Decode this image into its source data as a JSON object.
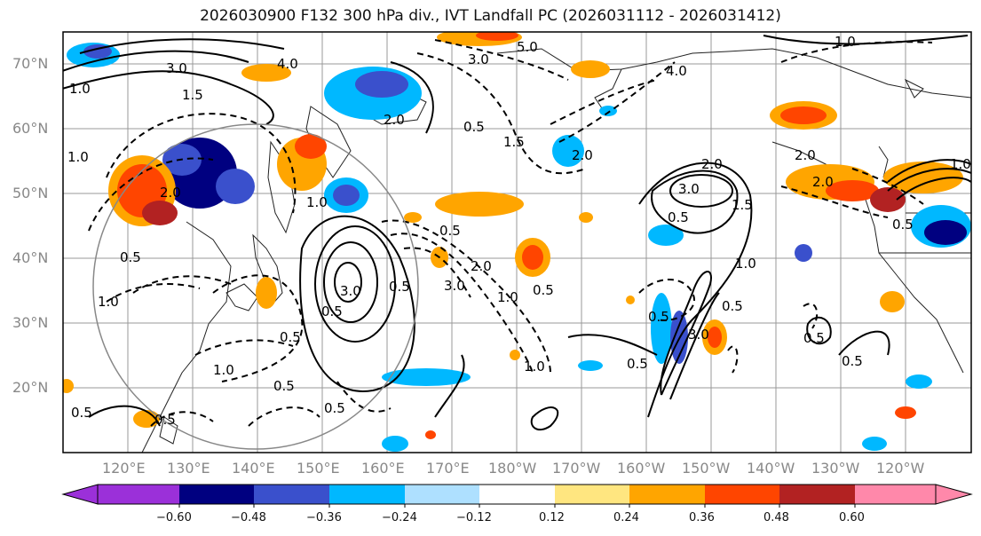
{
  "title": "2026030900 F132 300 hPa div., IVT Landfall PC (2026031112 - 2026031412)",
  "lat_labels": [
    "70°N",
    "60°N",
    "50°N",
    "40°N",
    "30°N",
    "20°N"
  ],
  "lon_labels": [
    "120°E",
    "130°E",
    "140°E",
    "150°E",
    "160°E",
    "170°E",
    "180°W",
    "170°W",
    "160°W",
    "150°W",
    "140°W",
    "130°W",
    "120°W"
  ],
  "colorbar": {
    "ticks": [
      "−0.60",
      "−0.48",
      "−0.36",
      "−0.24",
      "−0.12",
      "0.12",
      "0.24",
      "0.36",
      "0.48",
      "0.60"
    ],
    "colors": [
      "#9b30d9",
      "#000080",
      "#3a50cc",
      "#00b8ff",
      "#aee0ff",
      "#ffffff",
      "#ffe680",
      "#ffa500",
      "#ff4500",
      "#b22222",
      "#ff88aa"
    ]
  },
  "contour_labels": [
    "1.0",
    "3.0",
    "1.5",
    "4.0",
    "5.0",
    "3.0",
    "1.0",
    "2.0",
    "0.5",
    "1.5",
    "2.0",
    "1.0",
    "2.0",
    "3.0",
    "2.0",
    "1.0",
    "0.5",
    "1.5",
    "2.0",
    "1.0",
    "3.0",
    "0.5",
    "0.5",
    "0.5",
    "1.0",
    "0.5",
    "0.5",
    "0.5",
    "3.0",
    "0.5",
    "1.0",
    "0.5",
    "0.5",
    "0.5",
    "3.0",
    "0.5",
    "2.0",
    "1.0",
    "0.5",
    "0.5",
    "0.5",
    "0.5",
    "1.0",
    "1.0",
    "0.5",
    "4.0",
    "2.0"
  ]
}
